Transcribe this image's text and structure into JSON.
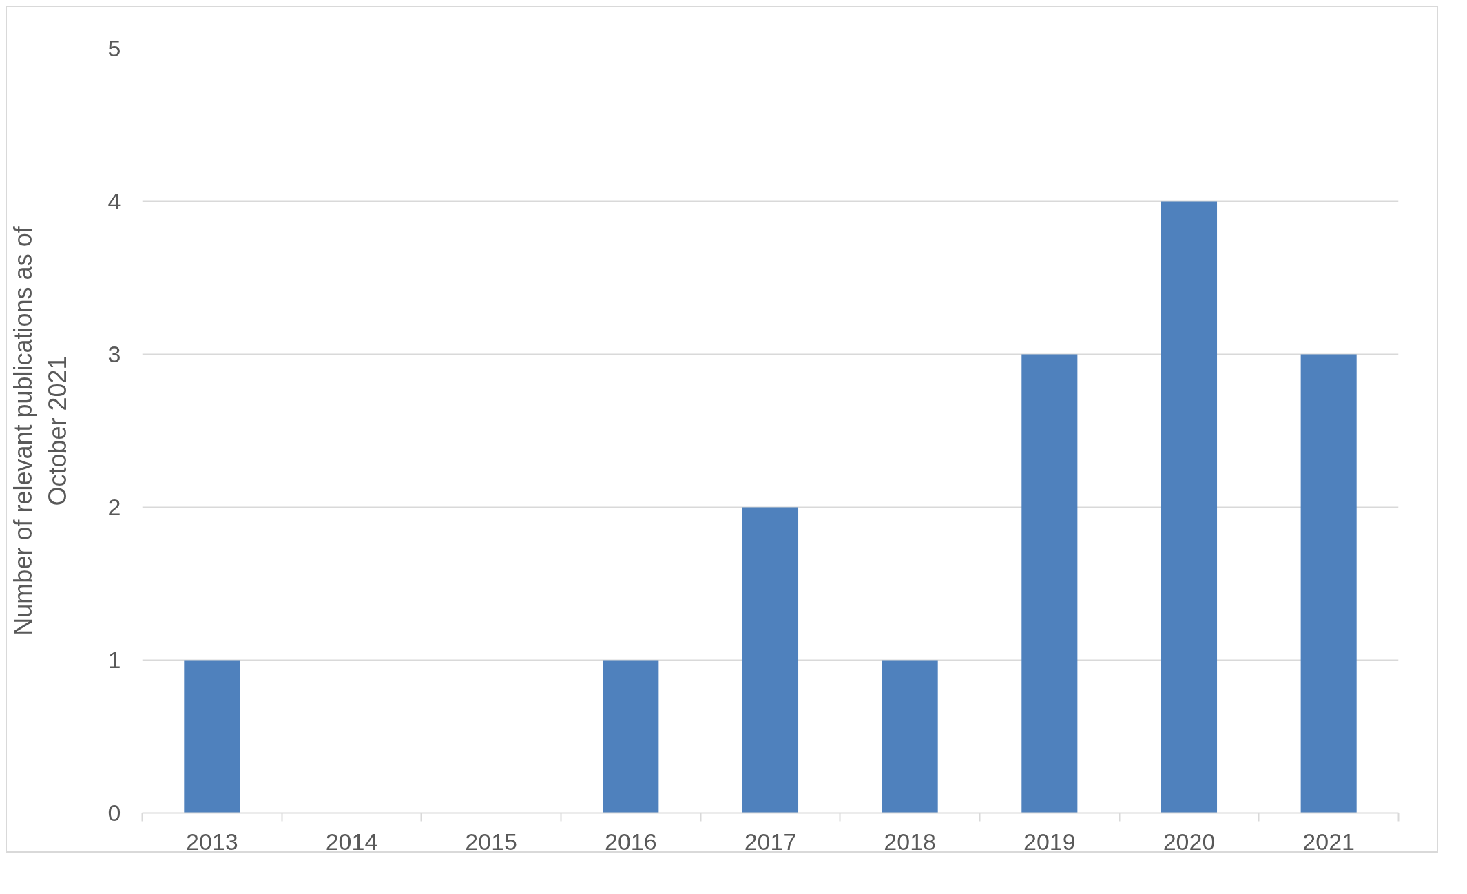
{
  "chart_data": {
    "type": "bar",
    "ylabel": "Number of relevant publications as of October 2021",
    "categories": [
      "2013",
      "2014",
      "2015",
      "2016",
      "2017",
      "2018",
      "2019",
      "2020",
      "2021"
    ],
    "values": [
      1,
      0,
      0,
      1,
      2,
      1,
      3,
      4,
      3
    ],
    "color": "#4f81bd",
    "ylim": [
      0,
      5
    ],
    "yticks": [
      0,
      1,
      2,
      3,
      4,
      5
    ],
    "grid": "y"
  }
}
